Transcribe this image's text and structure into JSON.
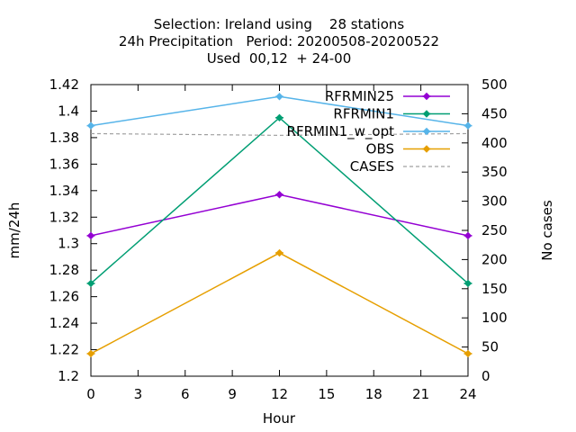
{
  "chart_data": {
    "type": "line",
    "title_lines": [
      "Selection: Ireland using    28 stations",
      "24h Precipitation   Period: 20200508-20200522",
      "Used  00,12  + 24-00"
    ],
    "xlabel": "Hour",
    "ylabel": "mm/24h",
    "y2label": "No cases",
    "xlim": [
      0,
      24
    ],
    "ylim": [
      1.2,
      1.42
    ],
    "y2lim": [
      0,
      500
    ],
    "x_ticks": [
      0,
      3,
      6,
      9,
      12,
      15,
      18,
      21,
      24
    ],
    "y_ticks": [
      1.2,
      1.22,
      1.24,
      1.26,
      1.28,
      1.3,
      1.32,
      1.34,
      1.36,
      1.38,
      1.4,
      1.42
    ],
    "y2_ticks": [
      0,
      50,
      100,
      150,
      200,
      250,
      300,
      350,
      400,
      450,
      500
    ],
    "legend_position": "top-right",
    "grid": false,
    "series": [
      {
        "name": "RFRMIN25",
        "color": "#9400d3",
        "axis": "y",
        "style": "line-points",
        "x": [
          0,
          12,
          24
        ],
        "values": [
          1.306,
          1.337,
          1.306
        ]
      },
      {
        "name": "RFRMIN1",
        "color": "#009e73",
        "axis": "y",
        "style": "line-points",
        "x": [
          0,
          12,
          24
        ],
        "values": [
          1.27,
          1.395,
          1.27
        ]
      },
      {
        "name": "RFRMIN1_w_opt",
        "color": "#56b4e9",
        "axis": "y",
        "style": "line-points",
        "x": [
          0,
          12,
          24
        ],
        "values": [
          1.389,
          1.411,
          1.389
        ]
      },
      {
        "name": "OBS",
        "color": "#e69f00",
        "axis": "y",
        "style": "line-points",
        "x": [
          0,
          12,
          24
        ],
        "values": [
          1.217,
          1.293,
          1.217
        ]
      },
      {
        "name": "CASES",
        "color": "#a0a0a0",
        "axis": "y2",
        "style": "dashed",
        "x": [
          0,
          12,
          24
        ],
        "values": [
          416,
          413,
          416
        ]
      }
    ]
  }
}
